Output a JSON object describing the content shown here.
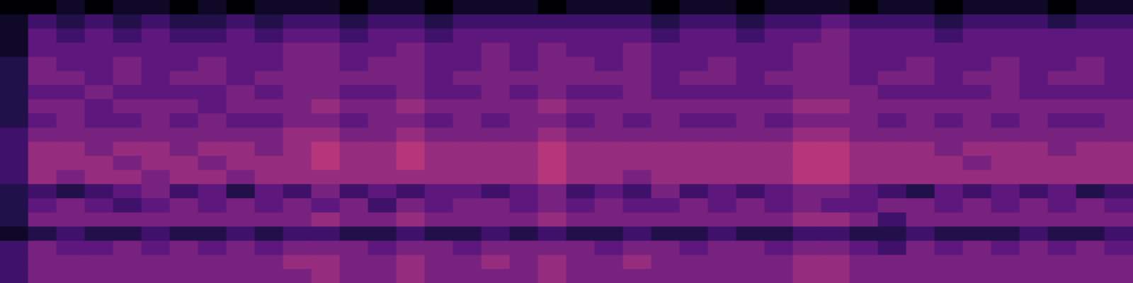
{
  "chart_data": {
    "type": "heatmap",
    "tick_labels": false,
    "zlim": [
      0,
      14
    ],
    "cells": [
      [
        0,
        0,
        1,
        0,
        1,
        1,
        0,
        1,
        0,
        1,
        1,
        1,
        0,
        1,
        1,
        0,
        1,
        1,
        1,
        0,
        1,
        1,
        1,
        0,
        1,
        1,
        0,
        1,
        1,
        1,
        0,
        1,
        1,
        0,
        1,
        1,
        1,
        0,
        1,
        1
      ],
      [
        1,
        3,
        2,
        3,
        2,
        3,
        2,
        2,
        3,
        2,
        3,
        3,
        2,
        3,
        3,
        2,
        3,
        3,
        3,
        3,
        3,
        3,
        3,
        2,
        3,
        3,
        2,
        3,
        3,
        4,
        3,
        3,
        3,
        2,
        3,
        3,
        3,
        2,
        3,
        3
      ],
      [
        1,
        4,
        3,
        4,
        3,
        4,
        3,
        3,
        4,
        3,
        4,
        4,
        3,
        4,
        4,
        3,
        4,
        4,
        4,
        4,
        4,
        4,
        4,
        3,
        4,
        4,
        3,
        4,
        4,
        5,
        4,
        4,
        4,
        3,
        4,
        4,
        4,
        4,
        4,
        4
      ],
      [
        1,
        4,
        4,
        4,
        4,
        4,
        4,
        4,
        4,
        4,
        5,
        5,
        4,
        4,
        5,
        4,
        4,
        5,
        4,
        5,
        4,
        4,
        5,
        4,
        4,
        4,
        4,
        4,
        5,
        5,
        4,
        4,
        4,
        4,
        4,
        4,
        4,
        4,
        4,
        4
      ],
      [
        2,
        5,
        4,
        4,
        5,
        4,
        4,
        5,
        4,
        4,
        5,
        5,
        4,
        5,
        5,
        4,
        4,
        5,
        4,
        5,
        5,
        4,
        5,
        4,
        4,
        5,
        4,
        4,
        5,
        5,
        4,
        4,
        5,
        4,
        4,
        5,
        4,
        4,
        5,
        4
      ],
      [
        2,
        5,
        5,
        4,
        5,
        4,
        5,
        5,
        4,
        5,
        5,
        5,
        5,
        5,
        5,
        4,
        5,
        5,
        5,
        5,
        5,
        5,
        5,
        4,
        5,
        5,
        4,
        5,
        5,
        5,
        4,
        5,
        5,
        4,
        5,
        5,
        4,
        5,
        5,
        4
      ],
      [
        2,
        4,
        4,
        5,
        4,
        4,
        4,
        4,
        5,
        4,
        5,
        5,
        4,
        4,
        5,
        4,
        4,
        5,
        4,
        5,
        4,
        4,
        5,
        4,
        4,
        4,
        4,
        4,
        5,
        5,
        5,
        4,
        4,
        4,
        4,
        5,
        4,
        4,
        4,
        4
      ],
      [
        2,
        5,
        5,
        4,
        5,
        5,
        5,
        4,
        5,
        5,
        5,
        6,
        5,
        5,
        6,
        5,
        5,
        5,
        5,
        6,
        5,
        5,
        5,
        5,
        5,
        5,
        5,
        5,
        6,
        6,
        5,
        5,
        5,
        5,
        5,
        5,
        5,
        5,
        5,
        5
      ],
      [
        2,
        4,
        5,
        4,
        4,
        5,
        4,
        5,
        4,
        4,
        5,
        5,
        4,
        5,
        5,
        4,
        5,
        4,
        5,
        5,
        4,
        5,
        4,
        5,
        4,
        4,
        5,
        4,
        5,
        5,
        5,
        4,
        5,
        4,
        5,
        4,
        5,
        4,
        4,
        5
      ],
      [
        3,
        5,
        5,
        5,
        5,
        5,
        5,
        5,
        5,
        5,
        6,
        6,
        5,
        5,
        6,
        5,
        5,
        5,
        5,
        6,
        5,
        5,
        5,
        5,
        5,
        5,
        5,
        5,
        6,
        6,
        5,
        5,
        5,
        5,
        5,
        5,
        5,
        5,
        5,
        5
      ],
      [
        3,
        6,
        6,
        5,
        6,
        6,
        5,
        6,
        6,
        5,
        6,
        7,
        6,
        6,
        7,
        6,
        6,
        6,
        6,
        7,
        6,
        6,
        6,
        6,
        6,
        6,
        6,
        6,
        7,
        7,
        6,
        6,
        6,
        5,
        6,
        6,
        6,
        5,
        6,
        6
      ],
      [
        3,
        6,
        6,
        6,
        5,
        6,
        6,
        5,
        6,
        6,
        6,
        7,
        6,
        6,
        7,
        6,
        6,
        6,
        6,
        7,
        6,
        6,
        6,
        6,
        6,
        6,
        6,
        6,
        7,
        7,
        6,
        6,
        6,
        6,
        5,
        6,
        6,
        6,
        6,
        6
      ],
      [
        3,
        6,
        5,
        6,
        6,
        5,
        6,
        6,
        5,
        6,
        6,
        6,
        6,
        6,
        6,
        6,
        6,
        6,
        6,
        7,
        6,
        6,
        5,
        6,
        6,
        6,
        6,
        6,
        7,
        7,
        6,
        6,
        6,
        6,
        6,
        6,
        6,
        6,
        6,
        6
      ],
      [
        2,
        3,
        2,
        3,
        4,
        5,
        3,
        4,
        2,
        4,
        3,
        5,
        3,
        4,
        3,
        4,
        4,
        3,
        4,
        5,
        3,
        4,
        3,
        5,
        3,
        4,
        3,
        4,
        5,
        5,
        4,
        3,
        2,
        4,
        3,
        4,
        3,
        4,
        2,
        3
      ],
      [
        2,
        4,
        5,
        4,
        3,
        4,
        5,
        4,
        5,
        4,
        5,
        4,
        5,
        3,
        5,
        4,
        5,
        5,
        4,
        5,
        4,
        5,
        4,
        4,
        5,
        4,
        5,
        4,
        5,
        4,
        4,
        5,
        5,
        4,
        5,
        4,
        5,
        4,
        5,
        4
      ],
      [
        2,
        5,
        5,
        5,
        5,
        5,
        5,
        5,
        5,
        5,
        5,
        6,
        5,
        5,
        6,
        5,
        5,
        5,
        5,
        6,
        5,
        5,
        5,
        5,
        5,
        5,
        5,
        5,
        6,
        6,
        5,
        3,
        5,
        5,
        5,
        5,
        5,
        5,
        5,
        5
      ],
      [
        1,
        2,
        3,
        2,
        2,
        3,
        2,
        2,
        3,
        2,
        3,
        3,
        2,
        2,
        3,
        2,
        2,
        3,
        2,
        3,
        2,
        2,
        3,
        2,
        2,
        3,
        2,
        2,
        3,
        3,
        2,
        2,
        3,
        2,
        2,
        2,
        3,
        2,
        2,
        3
      ],
      [
        3,
        5,
        4,
        4,
        5,
        4,
        5,
        4,
        5,
        4,
        5,
        5,
        5,
        4,
        5,
        5,
        4,
        5,
        5,
        5,
        5,
        4,
        5,
        5,
        4,
        5,
        5,
        4,
        5,
        5,
        4,
        3,
        5,
        4,
        5,
        4,
        5,
        4,
        5,
        4
      ],
      [
        3,
        5,
        5,
        5,
        5,
        5,
        5,
        5,
        5,
        5,
        6,
        6,
        5,
        5,
        6,
        5,
        5,
        6,
        5,
        6,
        5,
        5,
        6,
        5,
        5,
        5,
        5,
        5,
        6,
        6,
        5,
        5,
        5,
        5,
        5,
        5,
        5,
        5,
        5,
        5
      ],
      [
        3,
        5,
        5,
        5,
        5,
        5,
        5,
        5,
        5,
        5,
        5,
        6,
        5,
        5,
        6,
        5,
        5,
        5,
        5,
        6,
        5,
        5,
        5,
        5,
        5,
        5,
        5,
        5,
        6,
        6,
        5,
        5,
        5,
        5,
        5,
        5,
        5,
        5,
        5,
        5
      ]
    ]
  }
}
